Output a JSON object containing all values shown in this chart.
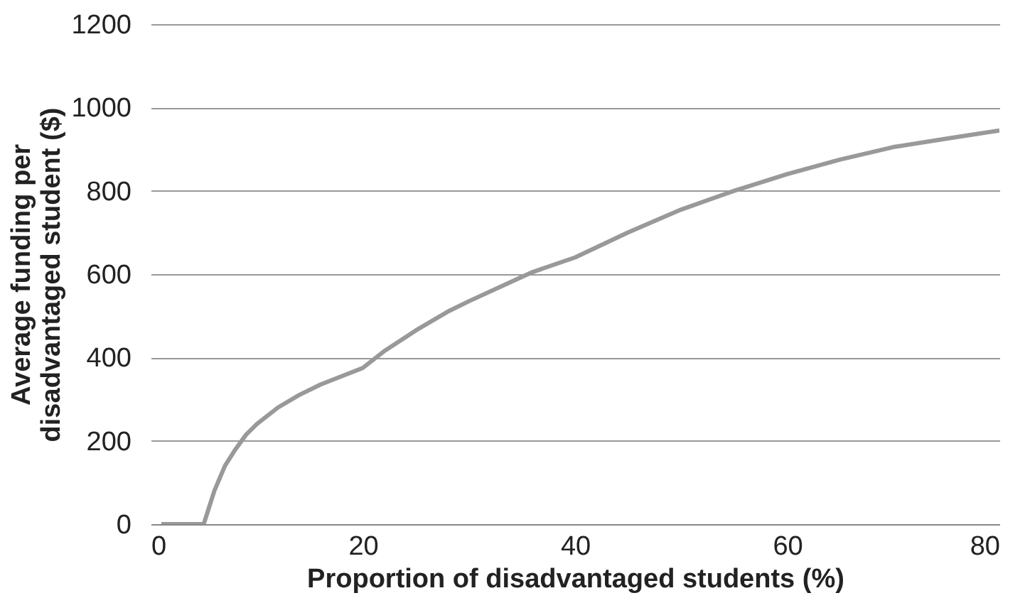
{
  "chart_data": {
    "type": "line",
    "xlabel": "Proportion of disadvantaged students (%)",
    "ylabel": "Average funding per disadvantaged student ($)",
    "x": [
      1,
      3,
      5,
      5.5,
      6,
      7,
      8,
      9,
      10,
      12,
      14,
      16,
      18,
      20,
      22,
      25,
      28,
      30,
      33,
      36,
      40,
      45,
      50,
      55,
      60,
      65,
      70,
      75,
      80
    ],
    "series": [
      {
        "color": "#999999",
        "values": [
          0,
          0,
          0,
          40,
          80,
          140,
          180,
          215,
          240,
          280,
          310,
          335,
          355,
          375,
          415,
          465,
          510,
          535,
          570,
          605,
          640,
          700,
          755,
          800,
          840,
          875,
          905,
          925,
          945
        ]
      }
    ],
    "xlim": [
      0,
      80
    ],
    "xticks": [
      0,
      20,
      40,
      60,
      80
    ],
    "ylim": [
      0,
      1200
    ],
    "yticks": [
      0,
      200,
      400,
      600,
      800,
      1000,
      1200
    ],
    "grid": "y",
    "legend": false,
    "marker": "none",
    "line_style": "solid"
  }
}
